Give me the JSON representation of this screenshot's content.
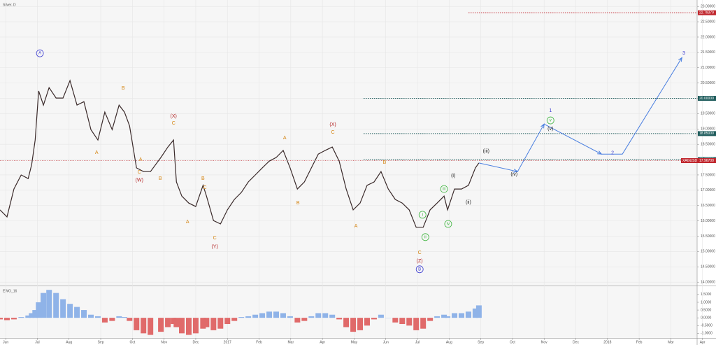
{
  "chart_data": [
    {
      "type": "line",
      "title": "Silver, D",
      "color": "#3a2a2a",
      "x": [
        -0.18,
        0.04,
        0.26,
        0.49,
        0.71,
        0.82,
        0.93,
        1.04,
        1.19,
        1.37,
        1.59,
        1.81,
        2.03,
        2.25,
        2.47,
        2.69,
        2.91,
        3.13,
        3.36,
        3.58,
        3.75,
        3.91,
        4.13,
        4.35,
        4.57,
        4.9,
        5.12,
        5.3,
        5.39,
        5.56,
        5.78,
        6.0,
        6.23,
        6.34,
        6.56,
        6.78,
        7.0,
        7.22,
        7.44,
        7.66,
        7.88,
        8.1,
        8.32,
        8.54,
        8.76,
        8.98,
        9.21,
        9.43,
        9.65,
        9.87,
        10.09,
        10.31,
        10.53,
        10.75,
        10.97,
        11.19,
        11.41,
        11.63,
        11.85,
        12.08,
        12.3,
        12.52,
        12.74,
        12.96,
        13.18,
        13.4,
        13.62,
        13.84,
        13.95,
        14.17,
        14.39,
        14.61,
        14.83,
        14.94
      ],
      "values": [
        16.36,
        16.13,
        17.04,
        17.5,
        17.38,
        17.84,
        18.64,
        20.24,
        19.78,
        20.35,
        20.01,
        20.01,
        20.58,
        19.78,
        19.89,
        18.98,
        18.64,
        19.55,
        18.98,
        19.78,
        19.55,
        19.1,
        17.73,
        17.61,
        17.61,
        18.07,
        18.41,
        18.64,
        17.27,
        16.81,
        16.58,
        16.47,
        17.16,
        16.81,
        16.01,
        15.9,
        16.36,
        16.7,
        16.93,
        17.27,
        17.5,
        17.73,
        17.95,
        18.07,
        18.3,
        17.73,
        17.04,
        17.27,
        17.73,
        18.18,
        18.3,
        18.41,
        17.95,
        17.04,
        16.36,
        16.58,
        17.16,
        17.27,
        17.61,
        17.04,
        16.7,
        16.58,
        16.36,
        15.79,
        15.79,
        16.36,
        16.58,
        16.81,
        16.36,
        17.04,
        17.04,
        17.16,
        17.73,
        17.89
      ],
      "xlim": [
        -0.18,
        21.83
      ],
      "ylim": [
        13.89,
        23.21
      ],
      "xticks": [
        {
          "value": 0,
          "label": "Jun"
        },
        {
          "value": 1,
          "label": "Jul"
        },
        {
          "value": 2,
          "label": "Aug"
        },
        {
          "value": 3,
          "label": "Sep"
        },
        {
          "value": 4,
          "label": "Oct"
        },
        {
          "value": 5,
          "label": "Nov"
        },
        {
          "value": 6,
          "label": "Dec"
        },
        {
          "value": 7,
          "label": "2017"
        },
        {
          "value": 8,
          "label": "Feb"
        },
        {
          "value": 9,
          "label": "Mar"
        },
        {
          "value": 10,
          "label": "Apr"
        },
        {
          "value": 11,
          "label": "May"
        },
        {
          "value": 12,
          "label": "Jun"
        },
        {
          "value": 13,
          "label": "Jul"
        },
        {
          "value": 14,
          "label": "Aug"
        },
        {
          "value": 15,
          "label": "Sep"
        },
        {
          "value": 16,
          "label": "Oct"
        },
        {
          "value": 17,
          "label": "Nov"
        },
        {
          "value": 18,
          "label": "Dec"
        },
        {
          "value": 19,
          "label": "2018"
        },
        {
          "value": 20,
          "label": "Feb"
        },
        {
          "value": 21,
          "label": "Mar"
        },
        {
          "value": 22,
          "label": "Apr"
        }
      ],
      "yticks": [
        {
          "value": 14,
          "label": "14.00000"
        },
        {
          "value": 14.5,
          "label": "14.50000"
        },
        {
          "value": 15,
          "label": "15.00000"
        },
        {
          "value": 15.5,
          "label": "15.50000"
        },
        {
          "value": 16,
          "label": "16.00000"
        },
        {
          "value": 16.5,
          "label": "16.50000"
        },
        {
          "value": 17,
          "label": "17.00000"
        },
        {
          "value": 17.5,
          "label": "17.50000"
        },
        {
          "value": 18,
          "label": "18.00000"
        },
        {
          "value": 18.5,
          "label": "18.50000"
        },
        {
          "value": 19,
          "label": "19.00000"
        },
        {
          "value": 19.5,
          "label": "19.50000"
        },
        {
          "value": 20,
          "label": "20.00000"
        },
        {
          "value": 20.5,
          "label": "20.50000"
        },
        {
          "value": 21,
          "label": "21.00000"
        },
        {
          "value": 21.5,
          "label": "21.50000"
        },
        {
          "value": 22,
          "label": "22.00000"
        },
        {
          "value": 22.5,
          "label": "22.50000"
        },
        {
          "value": 23,
          "label": "23.00000"
        }
      ],
      "grid": true,
      "levels": [
        {
          "value": 22.79379,
          "label": "22.79379",
          "color": "#c0262d",
          "from": 14.61
        },
        {
          "value": 20,
          "label": "20.00000",
          "color": "#1f5c5c",
          "from": 11.3
        },
        {
          "value": 18.85,
          "label": "18.85000",
          "color": "#1f5c5c",
          "from": 11.3
        },
        {
          "value": 18,
          "label": "18.00000",
          "color": "#1f5c5c",
          "from": 11.3
        }
      ],
      "price_tag": {
        "symbol": "XAGUSD",
        "value": 17.967,
        "label": "17.96700",
        "color": "#c0262d"
      },
      "projection": {
        "x": [
          14.94,
          16.16,
          17.0,
          18.81,
          19.47,
          21.35
        ],
        "values": [
          17.89,
          17.61,
          19.16,
          18.18,
          18.18,
          21.33
        ],
        "color": "#4a7fe0"
      },
      "annotations": [
        {
          "text": "A",
          "x": 1.08,
          "y": 21.47,
          "color": "#3b3bd1",
          "circled": true
        },
        {
          "text": "A",
          "x": 2.87,
          "y": 18.23,
          "color": "#d4830f"
        },
        {
          "text": "B",
          "x": 3.71,
          "y": 20.33,
          "color": "#d4830f"
        },
        {
          "text": "(X)",
          "x": 5.3,
          "y": 19.42,
          "color": "#b22222"
        },
        {
          "text": "C",
          "x": 5.3,
          "y": 19.19,
          "color": "#d4830f"
        },
        {
          "text": "A",
          "x": 4.26,
          "y": 18.0,
          "color": "#d4830f"
        },
        {
          "text": "B",
          "x": 4.88,
          "y": 17.38,
          "color": "#d4830f"
        },
        {
          "text": "C",
          "x": 4.22,
          "y": 17.59,
          "color": "#d4830f"
        },
        {
          "text": "(W)",
          "x": 4.22,
          "y": 17.32,
          "color": "#b22222"
        },
        {
          "text": "B",
          "x": 6.23,
          "y": 17.38,
          "color": "#d4830f"
        },
        {
          "text": "C",
          "x": 6.29,
          "y": 17.09,
          "color": "#d4830f"
        },
        {
          "text": "A",
          "x": 5.74,
          "y": 15.97,
          "color": "#d4830f"
        },
        {
          "text": "C",
          "x": 6.6,
          "y": 15.44,
          "color": "#d4830f"
        },
        {
          "text": "(Y)",
          "x": 6.6,
          "y": 15.15,
          "color": "#b22222"
        },
        {
          "text": "A",
          "x": 8.81,
          "y": 18.71,
          "color": "#d4830f"
        },
        {
          "text": "B",
          "x": 9.23,
          "y": 16.58,
          "color": "#d4830f"
        },
        {
          "text": "(X)",
          "x": 10.33,
          "y": 19.14,
          "color": "#b22222"
        },
        {
          "text": "C",
          "x": 10.33,
          "y": 18.89,
          "color": "#d4830f"
        },
        {
          "text": "B",
          "x": 11.96,
          "y": 17.91,
          "color": "#d4830f"
        },
        {
          "text": "A",
          "x": 11.06,
          "y": 15.83,
          "color": "#d4830f"
        },
        {
          "text": "C",
          "x": 13.07,
          "y": 14.96,
          "color": "#d4830f"
        },
        {
          "text": "(Z)",
          "x": 13.07,
          "y": 14.69,
          "color": "#b22222"
        },
        {
          "text": "B",
          "x": 13.07,
          "y": 14.42,
          "color": "#3b3bd1",
          "circled": true
        },
        {
          "text": "i",
          "x": 13.16,
          "y": 16.2,
          "color": "#3cb43c",
          "circled": true
        },
        {
          "text": "ii",
          "x": 13.25,
          "y": 15.47,
          "color": "#3cb43c",
          "circled": true
        },
        {
          "text": "iii",
          "x": 13.84,
          "y": 17.04,
          "color": "#3cb43c",
          "circled": true
        },
        {
          "text": "iv",
          "x": 13.97,
          "y": 15.9,
          "color": "#3cb43c",
          "circled": true
        },
        {
          "text": "(i)",
          "x": 14.13,
          "y": 17.47,
          "color": "#222222"
        },
        {
          "text": "(ii)",
          "x": 14.61,
          "y": 16.61,
          "color": "#222222"
        },
        {
          "text": "(iii)",
          "x": 15.17,
          "y": 18.27,
          "color": "#222222"
        },
        {
          "text": "(iv)",
          "x": 16.05,
          "y": 17.52,
          "color": "#222222"
        },
        {
          "text": "v",
          "x": 17.2,
          "y": 19.28,
          "color": "#3cb43c",
          "circled": true
        },
        {
          "text": "(v)",
          "x": 17.2,
          "y": 19.0,
          "color": "#222222"
        },
        {
          "text": "1",
          "x": 17.2,
          "y": 19.6,
          "color": "#3b3bd1"
        },
        {
          "text": "2",
          "x": 19.16,
          "y": 18.21,
          "color": "#3b3bd1"
        },
        {
          "text": "3",
          "x": 21.41,
          "y": 21.47,
          "color": "#3b3bd1"
        }
      ]
    },
    {
      "type": "bar",
      "title": "EWO_16",
      "pos_color": "#8fb3e8",
      "neg_color": "#e06a6a",
      "x": [
        -0.18,
        0.04,
        0.26,
        0.49,
        0.71,
        0.82,
        0.93,
        1.04,
        1.19,
        1.37,
        1.59,
        1.81,
        2.03,
        2.25,
        2.47,
        2.69,
        2.91,
        3.13,
        3.36,
        3.58,
        3.75,
        3.91,
        4.13,
        4.35,
        4.57,
        4.9,
        5.12,
        5.3,
        5.39,
        5.56,
        5.78,
        6.0,
        6.23,
        6.34,
        6.56,
        6.78,
        7.0,
        7.22,
        7.44,
        7.66,
        7.88,
        8.1,
        8.32,
        8.54,
        8.76,
        8.98,
        9.21,
        9.43,
        9.65,
        9.87,
        10.09,
        10.31,
        10.53,
        10.75,
        10.97,
        11.19,
        11.41,
        11.63,
        11.85,
        12.08,
        12.3,
        12.52,
        12.74,
        12.96,
        13.18,
        13.4,
        13.62,
        13.84,
        13.95,
        14.17,
        14.39,
        14.61,
        14.83,
        14.94
      ],
      "values": [
        -0.1,
        -0.15,
        -0.1,
        0.05,
        0.15,
        0.3,
        0.5,
        1.0,
        1.6,
        1.8,
        1.6,
        1.2,
        0.9,
        0.7,
        0.5,
        0.2,
        0.1,
        -0.3,
        -0.2,
        0.1,
        0.05,
        -0.2,
        -0.8,
        -1.0,
        -1.1,
        -0.9,
        -0.6,
        -0.4,
        -0.6,
        -1.0,
        -1.1,
        -1.0,
        -0.7,
        -0.6,
        -0.8,
        -0.7,
        -0.4,
        -0.2,
        0.05,
        0.1,
        0.2,
        0.3,
        0.4,
        0.4,
        0.3,
        0.1,
        -0.3,
        -0.2,
        0.1,
        0.3,
        0.3,
        0.2,
        -0.1,
        -0.6,
        -0.9,
        -0.8,
        -0.5,
        -0.1,
        0.2,
        0.0,
        -0.3,
        -0.4,
        -0.5,
        -0.8,
        -0.7,
        -0.2,
        0.1,
        0.2,
        0.1,
        0.3,
        0.3,
        0.4,
        0.6,
        0.8
      ],
      "xlim": [
        -0.18,
        21.83
      ],
      "ylim": [
        -1.3,
        1.9
      ],
      "yticks": [
        {
          "value": -1,
          "label": "-1.0000"
        },
        {
          "value": -0.5,
          "label": "-0.5000"
        },
        {
          "value": 0,
          "label": "0.0000"
        },
        {
          "value": 0.5,
          "label": "0.5000"
        },
        {
          "value": 1,
          "label": "1.0000"
        },
        {
          "value": 1.5,
          "label": "1.5000"
        }
      ]
    }
  ]
}
